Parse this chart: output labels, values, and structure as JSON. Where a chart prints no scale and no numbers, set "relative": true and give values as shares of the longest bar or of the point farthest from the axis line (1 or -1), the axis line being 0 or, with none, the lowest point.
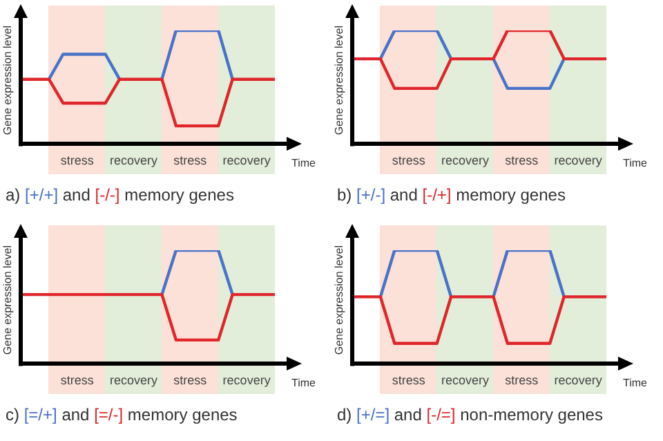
{
  "chart_data": [
    {
      "type": "line",
      "relative": true,
      "title": "a) [+/+] and [-/-] memory genes",
      "xlabel": "Time",
      "ylabel": "Gene expression level",
      "tick_labels": "x",
      "marker": "none",
      "line_style": "solid",
      "categories": [
        null,
        null,
        null,
        null,
        "stress",
        null,
        null,
        null,
        "recovery",
        null,
        null,
        null,
        "stress",
        null,
        null,
        null,
        "recovery",
        null,
        null
      ],
      "series": [
        {
          "color": "#4a72c8",
          "values": [
            null,
            null,
            0.57,
            0.79,
            0.79,
            0.79,
            0.79,
            0.57,
            null,
            null,
            0.57,
            1,
            1,
            1,
            1,
            0.57,
            null,
            null,
            null
          ]
        },
        {
          "color": "#e0262b",
          "values": [
            0.57,
            0.57,
            0.57,
            0.36,
            0.36,
            0.36,
            0.36,
            0.57,
            0.57,
            0.57,
            0.57,
            0.16,
            0.16,
            0.16,
            0.16,
            0.57,
            0.57,
            0.57,
            0.57
          ]
        }
      ]
    },
    {
      "type": "line",
      "relative": true,
      "title": "b) [+/-] and [-/+] memory genes",
      "xlabel": "Time",
      "ylabel": "Gene expression level",
      "tick_labels": "x",
      "marker": "none",
      "line_style": "solid",
      "categories": [
        null,
        null,
        null,
        null,
        "stress",
        null,
        null,
        null,
        "recovery",
        null,
        null,
        null,
        "stress",
        null,
        null,
        null,
        "recovery",
        null,
        null
      ],
      "series": [
        {
          "color": "#4a72c8",
          "values": [
            null,
            null,
            0.75,
            1,
            1,
            1,
            1,
            0.75,
            null,
            null,
            0.75,
            0.49,
            0.49,
            0.49,
            0.49,
            0.75,
            null,
            null,
            null
          ]
        },
        {
          "color": "#e0262b",
          "values": [
            0.75,
            0.75,
            0.75,
            0.49,
            0.49,
            0.49,
            0.49,
            0.75,
            0.75,
            0.75,
            0.75,
            1,
            1,
            1,
            1,
            0.75,
            0.75,
            0.75,
            0.75
          ]
        }
      ]
    },
    {
      "type": "line",
      "relative": true,
      "title": "c) [=/+] and [=/-] memory genes",
      "xlabel": "Time",
      "ylabel": "Gene expression level",
      "tick_labels": "x",
      "marker": "none",
      "line_style": "solid",
      "categories": [
        null,
        null,
        null,
        null,
        "stress",
        null,
        null,
        null,
        "recovery",
        null,
        null,
        null,
        "stress",
        null,
        null,
        null,
        "recovery",
        null,
        null
      ],
      "series": [
        {
          "color": "#4a72c8",
          "values": [
            null,
            null,
            null,
            null,
            null,
            null,
            null,
            null,
            null,
            null,
            0.61,
            1,
            1,
            1,
            1,
            0.61,
            null,
            null,
            null
          ]
        },
        {
          "color": "#e0262b",
          "values": [
            0.61,
            0.61,
            0.61,
            0.61,
            0.61,
            0.61,
            0.61,
            0.61,
            0.61,
            0.61,
            0.61,
            0.21,
            0.21,
            0.21,
            0.21,
            0.61,
            0.61,
            0.61,
            0.61
          ]
        }
      ]
    },
    {
      "type": "line",
      "relative": true,
      "title": "d) [+/=] and [-/=] non-memory genes",
      "xlabel": "Time",
      "ylabel": "Gene expression level",
      "tick_labels": "x",
      "marker": "none",
      "line_style": "solid",
      "categories": [
        null,
        null,
        null,
        null,
        "stress",
        null,
        null,
        null,
        "recovery",
        null,
        null,
        null,
        "stress",
        null,
        null,
        null,
        "recovery",
        null,
        null
      ],
      "series": [
        {
          "color": "#4a72c8",
          "values": [
            null,
            null,
            0.59,
            1,
            1,
            1,
            1,
            0.59,
            null,
            null,
            0.59,
            1,
            1,
            1,
            1,
            0.59,
            null,
            null,
            null
          ]
        },
        {
          "color": "#e0262b",
          "values": [
            0.59,
            0.59,
            0.59,
            0.18,
            0.18,
            0.18,
            0.18,
            0.59,
            0.59,
            0.59,
            0.59,
            0.18,
            0.18,
            0.18,
            0.18,
            0.59,
            0.59,
            0.59,
            0.59
          ]
        }
      ]
    }
  ]
}
